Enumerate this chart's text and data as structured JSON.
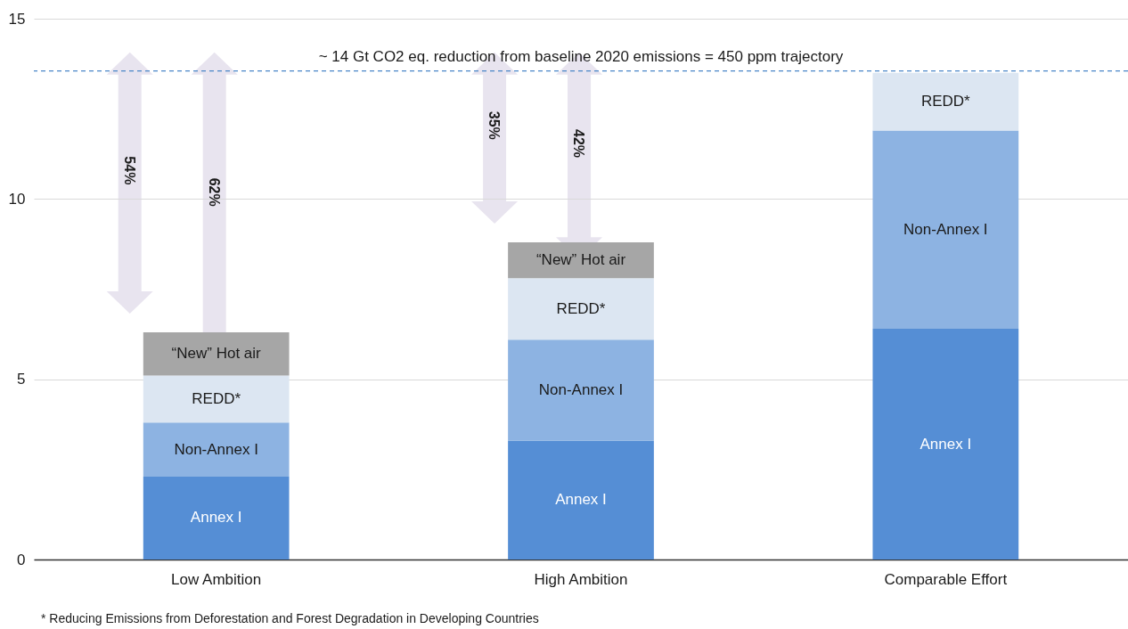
{
  "chart_data": {
    "type": "bar",
    "stacked": true,
    "categories": [
      "Low Ambition",
      "High Ambition",
      "Comparable Effort"
    ],
    "series": [
      {
        "name": "Annex I",
        "color": "#558ed5",
        "values": [
          2.3,
          3.3,
          6.4
        ]
      },
      {
        "name": "Non-Annex I",
        "color": "#8db3e2",
        "values": [
          1.5,
          2.8,
          5.5
        ]
      },
      {
        "name": "REDD*",
        "color": "#dce6f2",
        "values": [
          1.3,
          1.7,
          1.6
        ]
      },
      {
        "name": "“New” Hot air",
        "color": "#a6a6a6",
        "values": [
          1.2,
          1.0,
          null
        ]
      }
    ],
    "ylim": [
      0,
      15
    ],
    "yticks": [
      0,
      5,
      10,
      15
    ],
    "grid": "y",
    "ref_lines": [
      {
        "axis": "y",
        "value": 13.55,
        "label": "~ 14 Gt CO2 eq. reduction from baseline 2020 emissions = 450 ppm trajectory",
        "color": "#4a86c8",
        "line_style": "dashed"
      }
    ],
    "annotations": [
      "54%",
      "62%",
      "35%",
      "42%",
      "* Reducing Emissions from Deforestation and Forest Degradation in Developing  Countries"
    ]
  }
}
